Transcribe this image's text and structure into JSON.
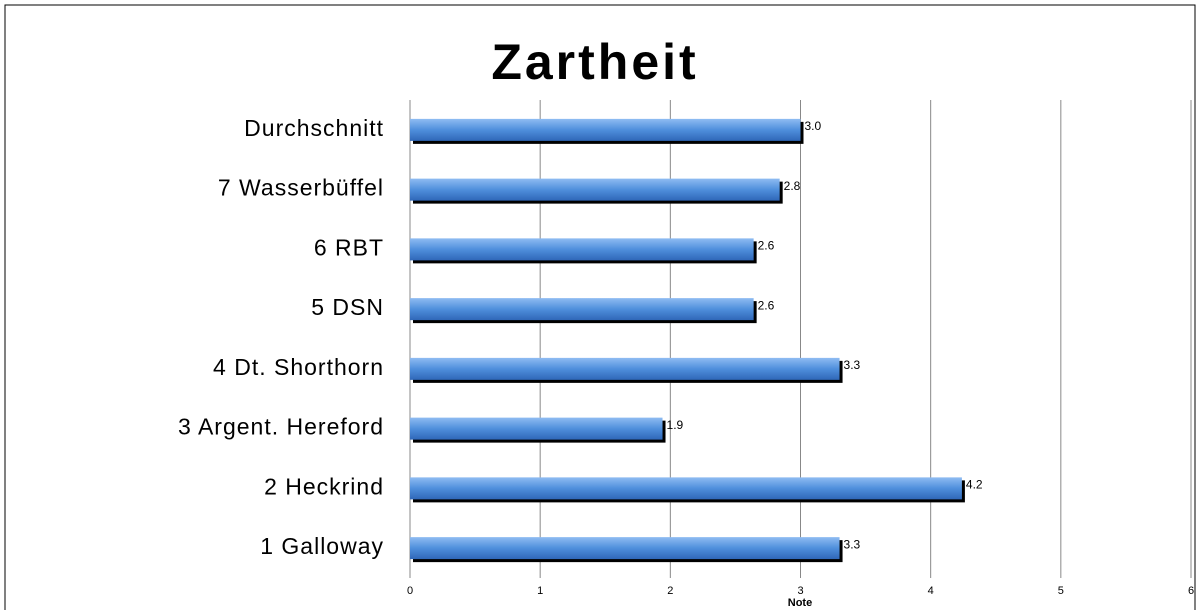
{
  "chart_data": {
    "type": "bar",
    "orientation": "horizontal",
    "title": "Zartheit",
    "xlabel": "Note",
    "categories": [
      "Durchschnitt",
      "7 Wasserbüffel",
      "6 RBT",
      "5 DSN",
      "4 Dt. Shorthorn",
      "3 Argent. Hereford",
      "2 Heckrind",
      "1 Galloway"
    ],
    "values": [
      3.0,
      2.84,
      2.64,
      2.64,
      3.3,
      1.94,
      4.24,
      3.3
    ],
    "value_labels": [
      "3.0",
      "2.8",
      "2.6",
      "2.6",
      "3.3",
      "1.9",
      "4.2",
      "3.3"
    ],
    "color": "#4f8fdc",
    "xlim": [
      0,
      6
    ],
    "xticks": [
      0,
      1,
      2,
      3,
      4,
      5,
      6
    ],
    "grid": true
  }
}
